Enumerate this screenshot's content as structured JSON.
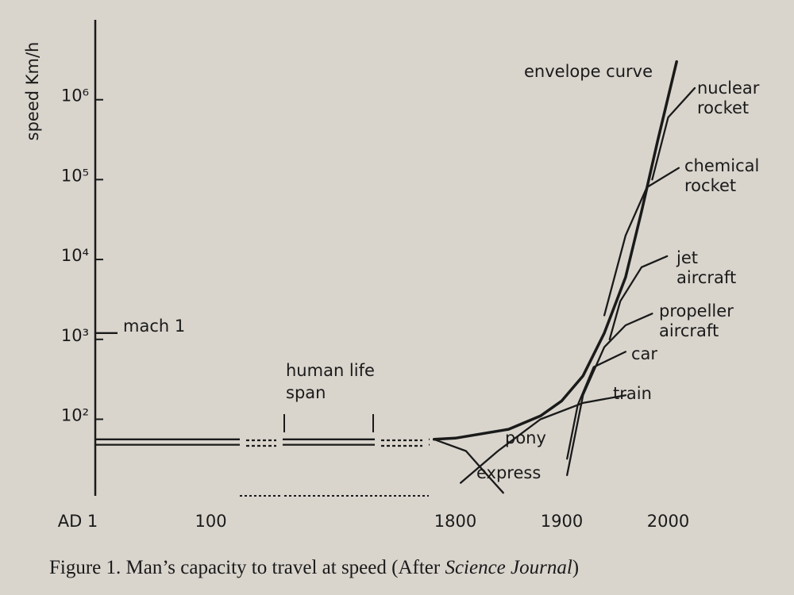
{
  "chart_data": {
    "type": "line",
    "y_label": "speed Km/h",
    "y_scale": "log",
    "ylim": [
      11,
      10000000
    ],
    "yticks": [
      {
        "value": 100,
        "label": "10²"
      },
      {
        "value": 1000,
        "label": "10³"
      },
      {
        "value": 10000,
        "label": "10⁴"
      },
      {
        "value": 100000,
        "label": "10⁵"
      },
      {
        "value": 1000000,
        "label": "10⁶"
      }
    ],
    "xticks": [
      {
        "value": 1,
        "label": "AD 1"
      },
      100,
      1800,
      1900,
      2000
    ],
    "color": "#1a1a1a",
    "series": [
      {
        "x": [
          1,
          1775
        ],
        "values": [
          56,
          56
        ]
      },
      {
        "x": [
          1,
          1775
        ],
        "values": [
          48,
          48
        ]
      },
      {
        "name": "envelope curve",
        "x": [
          1780,
          1800,
          1850,
          1880,
          1900,
          1920,
          1940,
          1960,
          1975,
          1990,
          2008
        ],
        "values": [
          56,
          58,
          75,
          110,
          170,
          350,
          1200,
          6000,
          40000,
          300000,
          3000000
        ]
      },
      {
        "name": "pony express",
        "x": [
          1780,
          1810,
          1830,
          1845
        ],
        "values": [
          56,
          40,
          20,
          12
        ]
      },
      {
        "name": "train",
        "x": [
          1805,
          1840,
          1880,
          1920,
          1960
        ],
        "values": [
          16,
          40,
          100,
          160,
          200
        ]
      },
      {
        "name": "car",
        "x": [
          1905,
          1915,
          1930,
          1960
        ],
        "values": [
          32,
          150,
          450,
          700
        ]
      },
      {
        "name": "propeller aircraft",
        "x": [
          1905,
          1920,
          1940,
          1960,
          1985
        ],
        "values": [
          20,
          200,
          800,
          1500,
          2100
        ]
      },
      {
        "name": "jet aircraft",
        "x": [
          1945,
          1955,
          1975,
          1999
        ],
        "values": [
          1000,
          3000,
          8000,
          11000
        ]
      },
      {
        "name": "chemical rocket",
        "x": [
          1940,
          1960,
          1980,
          2010
        ],
        "values": [
          2000,
          20000,
          80000,
          140000
        ]
      },
      {
        "name": "nuclear rocket",
        "x": [
          1985,
          2000,
          2025
        ],
        "values": [
          100000,
          600000,
          1400000
        ]
      }
    ],
    "annotations": [
      {
        "text": "mach 1",
        "value": 1200
      },
      {
        "text": "human life span"
      }
    ],
    "caption": [
      "Figure 1.  Man’s capacity to travel at speed (After ",
      "Science Journal",
      ")"
    ]
  }
}
